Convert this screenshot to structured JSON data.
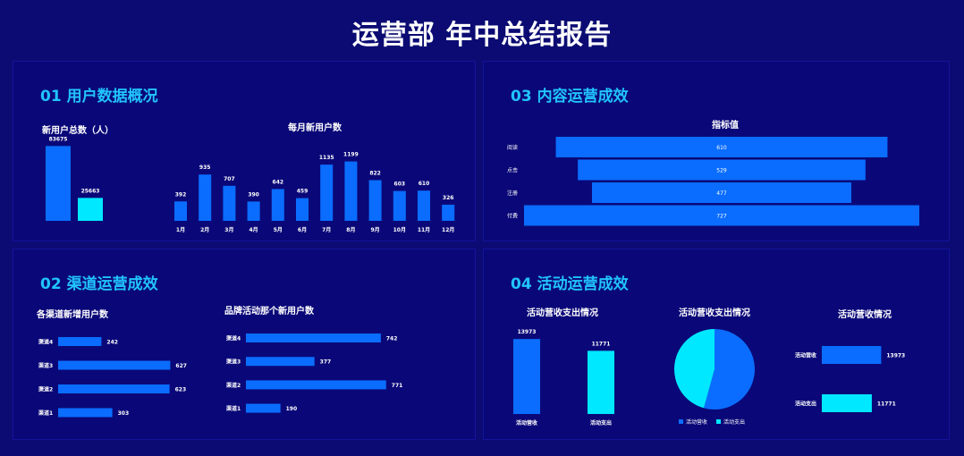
{
  "page": {
    "title": "运营部 年中总结报告"
  },
  "colors": {
    "blue": "#0a6dff",
    "cyan": "#00e8ff",
    "title_accent": "#21c4ff"
  },
  "panels": {
    "p1": {
      "title": "01 用户数据概况"
    },
    "p2": {
      "title": "02 渠道运营成效"
    },
    "p3": {
      "title": "03 内容运营成效"
    },
    "p4": {
      "title": "04 活动运营成效"
    }
  },
  "chart_data": [
    {
      "id": "total_users",
      "type": "bar",
      "title": "新用户总数（人）",
      "categories": [
        "",
        ""
      ],
      "values": [
        83675,
        25663
      ],
      "colors": [
        "#0a6dff",
        "#00e8ff"
      ],
      "ylim": [
        0,
        90000
      ]
    },
    {
      "id": "monthly_users",
      "type": "bar",
      "title": "每月新用户数",
      "categories": [
        "1月",
        "2月",
        "3月",
        "4月",
        "5月",
        "6月",
        "7月",
        "8月",
        "9月",
        "10月",
        "11月",
        "12月"
      ],
      "values": [
        392,
        935,
        707,
        390,
        642,
        459,
        1135,
        1199,
        822,
        603,
        610,
        326
      ],
      "ylim": [
        0,
        1300
      ]
    },
    {
      "id": "content_funnel",
      "type": "bar",
      "orientation": "horizontal",
      "title": "指标值",
      "categories": [
        "阅读",
        "点击",
        "注册",
        "付费"
      ],
      "values": [
        610,
        529,
        477,
        727
      ],
      "xlim": [
        0,
        727
      ]
    },
    {
      "id": "channel_users",
      "type": "bar",
      "orientation": "horizontal",
      "title": "各渠道新增用户数",
      "categories": [
        "渠道4",
        "渠道3",
        "渠道2",
        "渠道1"
      ],
      "values": [
        242,
        627,
        623,
        303
      ],
      "xlim": [
        0,
        800
      ]
    },
    {
      "id": "brand_users",
      "type": "bar",
      "orientation": "horizontal",
      "title": "品牌活动那个新用户数",
      "categories": [
        "渠道4",
        "渠道3",
        "渠道2",
        "渠道1"
      ],
      "values": [
        742,
        377,
        771,
        190
      ],
      "xlim": [
        0,
        900
      ]
    },
    {
      "id": "activity_bar",
      "type": "bar",
      "title": "活动营收支出情况",
      "categories": [
        "活动营收",
        "活动支出"
      ],
      "values": [
        13973,
        11771
      ],
      "colors": [
        "#0a6dff",
        "#00e8ff"
      ],
      "ylim": [
        0,
        16000
      ]
    },
    {
      "id": "activity_pie",
      "type": "pie",
      "title": "活动营收支出情况",
      "categories": [
        "活动营收",
        "活动支出"
      ],
      "values": [
        13973,
        11771
      ],
      "colors": [
        "#0a6dff",
        "#00e8ff"
      ],
      "legend": "bottom"
    },
    {
      "id": "activity_hbar",
      "type": "bar",
      "orientation": "horizontal",
      "title": "活动营收情况",
      "categories": [
        "活动营收",
        "活动支出"
      ],
      "values": [
        13973,
        11771
      ],
      "colors": [
        "#0a6dff",
        "#00e8ff"
      ],
      "xlim": [
        0,
        16000
      ]
    }
  ]
}
